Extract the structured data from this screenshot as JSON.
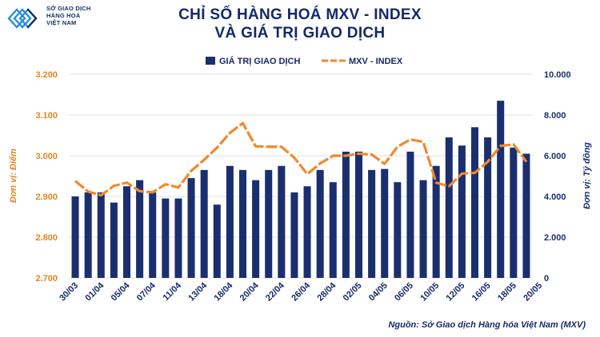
{
  "header": {
    "org_lines": [
      "SỞ GIAO DỊCH",
      "HÀNG HOÁ",
      "VIỆT NAM"
    ],
    "title_line1": "CHỈ SỐ HÀNG HOÁ MXV - INDEX",
    "title_line2": "VÀ GIÁ TRỊ GIAO DỊCH"
  },
  "source": "Nguồn: Sở Giao dịch Hàng hóa Việt Nam (MXV)",
  "chart_data": {
    "type": "bar+line",
    "legend": {
      "position": "top-center",
      "bar_label": "GIÁ TRỊ GIAO DỊCH",
      "line_label": "MXV - INDEX"
    },
    "left_axis": {
      "label": "Đơn vị: Điểm",
      "ticks": [
        "2.700",
        "2.800",
        "2.900",
        "3.000",
        "3.100",
        "3.200"
      ],
      "range": [
        2700,
        3200
      ]
    },
    "right_axis": {
      "label": "Đơn vị: Tỷ đồng",
      "ticks": [
        "0",
        "2.000",
        "4.000",
        "6.000",
        "8.000",
        "10.000"
      ],
      "range": [
        0,
        10000
      ]
    },
    "x_tick_labels": [
      "30/03",
      "01/04",
      "05/04",
      "07/04",
      "11/04",
      "13/04",
      "18/04",
      "20/04",
      "22/04",
      "26/04",
      "28/04",
      "02/05",
      "04/05",
      "06/05",
      "10/05",
      "12/05",
      "16/05",
      "18/05",
      "20/05"
    ],
    "bar_values": [
      4000,
      4200,
      4200,
      3700,
      4500,
      4800,
      4200,
      3900,
      3900,
      4900,
      5300,
      3600,
      5500,
      5300,
      4800,
      5300,
      5500,
      4200,
      4500,
      5300,
      4700,
      6200,
      6200,
      5300,
      5350,
      4700,
      6200,
      4800,
      5500,
      6900,
      6500,
      7400,
      6900,
      8700,
      6400,
      6100
    ],
    "line_values": [
      2.938,
      2.912,
      2.903,
      2.926,
      2.934,
      2.913,
      2.91,
      2.93,
      2.922,
      2.963,
      2.99,
      3.02,
      3.056,
      3.08,
      3.023,
      3.022,
      3.022,
      2.995,
      2.955,
      2.981,
      3.0,
      3.0,
      3.005,
      3.003,
      2.98,
      3.022,
      3.04,
      3.034,
      2.934,
      2.925,
      2.956,
      2.958,
      2.985,
      3.024,
      3.028,
      2.985
    ],
    "grid": true
  },
  "colors": {
    "bar": "#1b2f6e",
    "line": "#f08a2c",
    "title": "#14296a",
    "left_axis": "#e88422",
    "right_axis": "#1b2f6e"
  }
}
